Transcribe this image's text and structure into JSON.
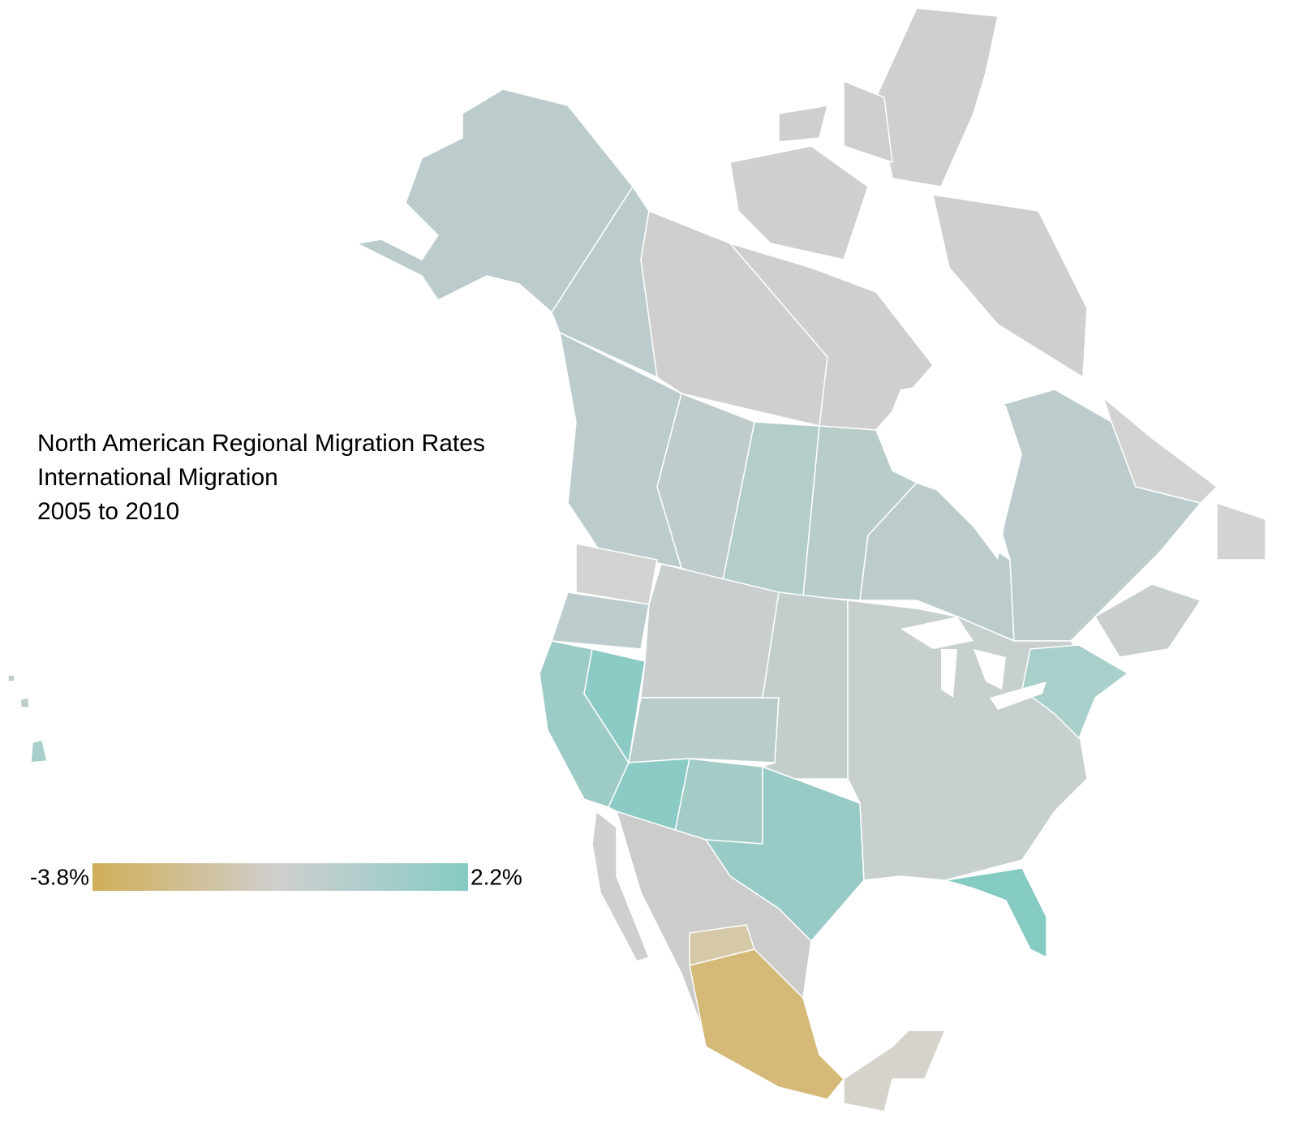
{
  "title_lines": [
    "North American Regional Migration Rates",
    "International Migration",
    "2005 to 2010"
  ],
  "legend": {
    "min": -3.8,
    "max": 2.2,
    "min_label": "-3.8%",
    "max_label": "2.2%",
    "colors": [
      "#d1ae58",
      "#cfcfcf",
      "#86cbc5"
    ]
  }
}
